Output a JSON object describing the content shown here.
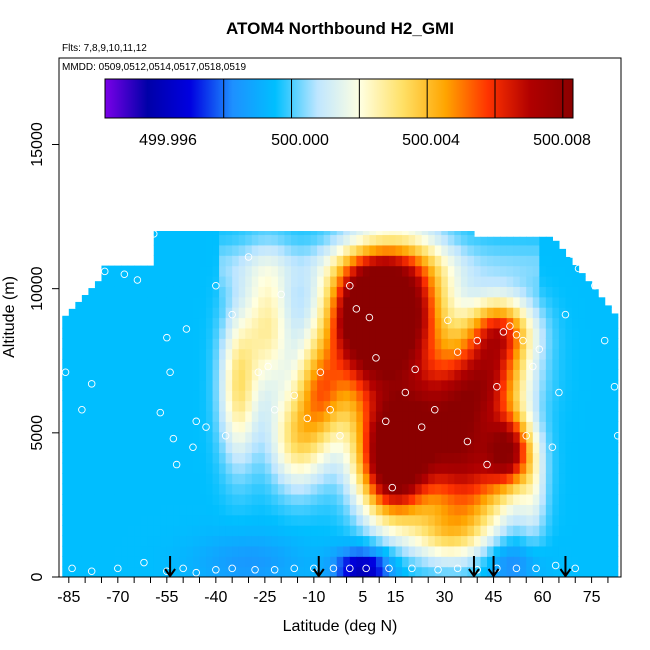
{
  "chart_data": {
    "type": "heatmap",
    "title": "ATOM4 Northbound H2_GMI",
    "subtitle_lines": [
      "Flts: 7,8,9,10,11,12",
      "MMDD: 0509,0512,0514,0517,0518,0519"
    ],
    "xlabel": "Latitude (deg N)",
    "ylabel": "Altitude (m)",
    "xlim": [
      -88,
      84
    ],
    "ylim": [
      0,
      18000
    ],
    "x_ticks": [
      -85,
      -70,
      -55,
      -40,
      -25,
      -10,
      5,
      15,
      30,
      45,
      60,
      75
    ],
    "x_minor_step": 5,
    "y_ticks": [
      0,
      5000,
      10000,
      15000
    ],
    "colorbar": {
      "labels": [
        "499.996",
        "500.000",
        "500.004",
        "500.008"
      ],
      "vmin": 499.9945,
      "vmax": 500.0083,
      "boundaries": [
        499.998,
        500.0,
        500.002,
        500.004,
        500.006,
        500.008
      ],
      "colors": [
        "#7a00e8",
        "#0000a8",
        "#0000e0",
        "#1e90ff",
        "#00bfff",
        "#bfe6ff",
        "#ffffe0",
        "#ffe066",
        "#ffa500",
        "#ff3300",
        "#b00000",
        "#8b0000"
      ]
    },
    "background_value": 499.9995,
    "hotspots": [
      {
        "lat": 6,
        "alt": 9300,
        "value": 500.008,
        "sx": 8,
        "sy": 1300
      },
      {
        "lat": 18,
        "alt": 9600,
        "value": 500.006,
        "sx": 9,
        "sy": 1500
      },
      {
        "lat": 10,
        "alt": 7300,
        "value": 500.004,
        "sx": 13,
        "sy": 1700
      },
      {
        "lat": 14,
        "alt": 3800,
        "value": 500.007,
        "sx": 7,
        "sy": 1300
      },
      {
        "lat": 22,
        "alt": 5000,
        "value": 500.005,
        "sx": 11,
        "sy": 1500
      },
      {
        "lat": 38,
        "alt": 3200,
        "value": 500.004,
        "sx": 9,
        "sy": 1400
      },
      {
        "lat": 50,
        "alt": 4400,
        "value": 500.006,
        "sx": 5,
        "sy": 900
      },
      {
        "lat": 47,
        "alt": 8600,
        "value": 500.005,
        "sx": 7,
        "sy": 800
      },
      {
        "lat": 45,
        "alt": 7000,
        "value": 500.004,
        "sx": 8,
        "sy": 1000
      },
      {
        "lat": -24,
        "alt": 8800,
        "value": 500.0025,
        "sx": 5,
        "sy": 1600
      },
      {
        "lat": -33,
        "alt": 6600,
        "value": 500.003,
        "sx": 4,
        "sy": 1800
      },
      {
        "lat": -15,
        "alt": 4800,
        "value": 500.003,
        "sx": 6,
        "sy": 1200
      },
      {
        "lat": 5,
        "alt": 300,
        "value": 499.996,
        "sx": 6,
        "sy": 500
      },
      {
        "lat": 50,
        "alt": 500,
        "value": 499.998,
        "sx": 6,
        "sy": 600
      },
      {
        "lat": -30,
        "alt": 500,
        "value": 499.9985,
        "sx": 12,
        "sy": 700
      },
      {
        "lat": -45,
        "alt": 1200,
        "value": 499.9995,
        "sx": 5,
        "sy": 800
      },
      {
        "lat": 30,
        "alt": 1500,
        "value": 500.002,
        "sx": 8,
        "sy": 700
      },
      {
        "lat": 57,
        "alt": 2800,
        "value": 500.001,
        "sx": 3,
        "sy": 1200
      },
      {
        "lat": -8,
        "alt": 6500,
        "value": 500.003,
        "sx": 5,
        "sy": 1200
      },
      {
        "lat": 37,
        "alt": 5800,
        "value": 500.004,
        "sx": 8,
        "sy": 1500
      }
    ],
    "arrows_lat": [
      -54,
      -8.5,
      39,
      45,
      67
    ],
    "observations": [
      [
        -85,
        10100
      ],
      [
        -86,
        7100
      ],
      [
        -81,
        5800
      ],
      [
        -78,
        6700
      ],
      [
        -74,
        10600
      ],
      [
        -68,
        10500
      ],
      [
        -64,
        10300
      ],
      [
        -59,
        11900
      ],
      [
        -57,
        5700
      ],
      [
        -55,
        8300
      ],
      [
        -54,
        7100
      ],
      [
        -53,
        4800
      ],
      [
        -52,
        3900
      ],
      [
        -49,
        8600
      ],
      [
        -47,
        4500
      ],
      [
        -46,
        5400
      ],
      [
        -43,
        5200
      ],
      [
        -40,
        10100
      ],
      [
        -37,
        4900
      ],
      [
        -35,
        9100
      ],
      [
        -30,
        11100
      ],
      [
        -27,
        7100
      ],
      [
        -24,
        7300
      ],
      [
        -22,
        5800
      ],
      [
        -20,
        9800
      ],
      [
        -16,
        6300
      ],
      [
        -12,
        5500
      ],
      [
        -8,
        7100
      ],
      [
        -5,
        5800
      ],
      [
        -2,
        4900
      ],
      [
        1,
        10100
      ],
      [
        3,
        9300
      ],
      [
        7,
        9000
      ],
      [
        9,
        7600
      ],
      [
        12,
        5400
      ],
      [
        14,
        3100
      ],
      [
        18,
        6400
      ],
      [
        21,
        7200
      ],
      [
        23,
        5200
      ],
      [
        27,
        5800
      ],
      [
        31,
        8900
      ],
      [
        34,
        7800
      ],
      [
        37,
        4700
      ],
      [
        40,
        8200
      ],
      [
        43,
        3900
      ],
      [
        46,
        6600
      ],
      [
        48,
        8500
      ],
      [
        50,
        8700
      ],
      [
        52,
        8400
      ],
      [
        54,
        8200
      ],
      [
        55,
        4900
      ],
      [
        57,
        7300
      ],
      [
        59,
        7900
      ],
      [
        63,
        4500
      ],
      [
        65,
        6400
      ],
      [
        67,
        9100
      ],
      [
        69,
        11200
      ],
      [
        71,
        10700
      ],
      [
        73,
        11100
      ],
      [
        76,
        10100
      ],
      [
        79,
        8200
      ],
      [
        82,
        6600
      ],
      [
        83,
        4900
      ],
      [
        -84,
        300
      ],
      [
        -78,
        200
      ],
      [
        -70,
        300
      ],
      [
        -62,
        500
      ],
      [
        -55,
        200
      ],
      [
        -50,
        300
      ],
      [
        -46,
        150
      ],
      [
        -40,
        250
      ],
      [
        -35,
        300
      ],
      [
        -28,
        250
      ],
      [
        -22,
        250
      ],
      [
        -16,
        300
      ],
      [
        -10,
        300
      ],
      [
        -4,
        300
      ],
      [
        1,
        300
      ],
      [
        6,
        300
      ],
      [
        13,
        300
      ],
      [
        20,
        300
      ],
      [
        28,
        250
      ],
      [
        34,
        300
      ],
      [
        40,
        250
      ],
      [
        46,
        300
      ],
      [
        52,
        300
      ],
      [
        58,
        300
      ],
      [
        64,
        400
      ],
      [
        70,
        300
      ]
    ]
  }
}
